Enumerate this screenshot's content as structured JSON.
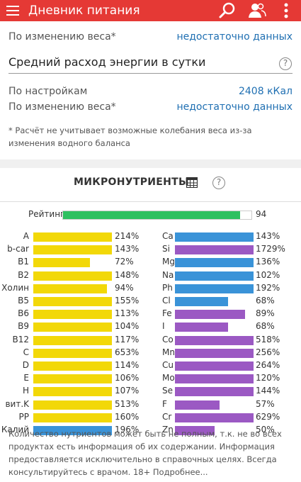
{
  "appbar": {
    "title": "Дневник питания",
    "icons": [
      "menu-icon",
      "search-icon",
      "users-icon",
      "more-vert-icon"
    ]
  },
  "weight_top": {
    "label": "По изменению веса*",
    "value": "недостаточно данных"
  },
  "energy": {
    "title": "Средний расход энергии в сутки",
    "help": "?",
    "settings_label": "По настройкам",
    "settings_value": "2408 кКал",
    "weight_label": "По изменению веса*",
    "weight_value": "недостаточно данных",
    "note": "* Расчёт не учитывает возможные колебания веса из-за изменения водного баланса"
  },
  "micro": {
    "title": "МИКРОНУТРИЕНТЫ",
    "help": "?",
    "rating_label": "Рейтинг",
    "rating_value": "94",
    "rating_fraction": 0.94,
    "colors": {
      "yellow": "#f2d808",
      "blue": "#3a93d8",
      "purple": "#9b59c3",
      "green": "#2ec060"
    },
    "left": [
      {
        "name": "A",
        "pct": "214%",
        "value": 214,
        "color": "yellow"
      },
      {
        "name": "b-car",
        "pct": "143%",
        "value": 143,
        "color": "yellow"
      },
      {
        "name": "B1",
        "pct": "72%",
        "value": 72,
        "color": "yellow"
      },
      {
        "name": "B2",
        "pct": "148%",
        "value": 148,
        "color": "yellow"
      },
      {
        "name": "Холин",
        "pct": "94%",
        "value": 94,
        "color": "yellow"
      },
      {
        "name": "B5",
        "pct": "155%",
        "value": 155,
        "color": "yellow"
      },
      {
        "name": "B6",
        "pct": "113%",
        "value": 113,
        "color": "yellow"
      },
      {
        "name": "B9",
        "pct": "104%",
        "value": 104,
        "color": "yellow"
      },
      {
        "name": "B12",
        "pct": "117%",
        "value": 117,
        "color": "yellow"
      },
      {
        "name": "C",
        "pct": "653%",
        "value": 653,
        "color": "yellow"
      },
      {
        "name": "D",
        "pct": "114%",
        "value": 114,
        "color": "yellow"
      },
      {
        "name": "E",
        "pct": "106%",
        "value": 106,
        "color": "yellow"
      },
      {
        "name": "H",
        "pct": "107%",
        "value": 107,
        "color": "yellow"
      },
      {
        "name": "вит.K",
        "pct": "513%",
        "value": 513,
        "color": "yellow"
      },
      {
        "name": "PP",
        "pct": "160%",
        "value": 160,
        "color": "yellow"
      },
      {
        "name": "Калий",
        "pct": "196%",
        "value": 196,
        "color": "blue"
      }
    ],
    "right": [
      {
        "name": "Ca",
        "pct": "143%",
        "value": 143,
        "color": "blue"
      },
      {
        "name": "Si",
        "pct": "1729%",
        "value": 1729,
        "color": "purple"
      },
      {
        "name": "Mg",
        "pct": "136%",
        "value": 136,
        "color": "blue"
      },
      {
        "name": "Na",
        "pct": "102%",
        "value": 102,
        "color": "blue"
      },
      {
        "name": "Ph",
        "pct": "192%",
        "value": 192,
        "color": "blue"
      },
      {
        "name": "Cl",
        "pct": "68%",
        "value": 68,
        "color": "blue"
      },
      {
        "name": "Fe",
        "pct": "89%",
        "value": 89,
        "color": "purple"
      },
      {
        "name": "I",
        "pct": "68%",
        "value": 68,
        "color": "purple"
      },
      {
        "name": "Co",
        "pct": "518%",
        "value": 518,
        "color": "purple"
      },
      {
        "name": "Mn",
        "pct": "256%",
        "value": 256,
        "color": "purple"
      },
      {
        "name": "Cu",
        "pct": "264%",
        "value": 264,
        "color": "purple"
      },
      {
        "name": "Mo",
        "pct": "120%",
        "value": 120,
        "color": "purple"
      },
      {
        "name": "Se",
        "pct": "144%",
        "value": 144,
        "color": "purple"
      },
      {
        "name": "F",
        "pct": "57%",
        "value": 57,
        "color": "purple"
      },
      {
        "name": "Cr",
        "pct": "629%",
        "value": 629,
        "color": "purple"
      },
      {
        "name": "Zn",
        "pct": "50%",
        "value": 50,
        "color": "purple"
      }
    ],
    "disclaimer": "Количество нутриентов может быть не полным, т.к. не во всех продуктах есть информация об их содержании. Информация предоставляется исключительно в справочных целях. Всегда консультируйтесь с врачом. 18+ Подробнее..."
  }
}
